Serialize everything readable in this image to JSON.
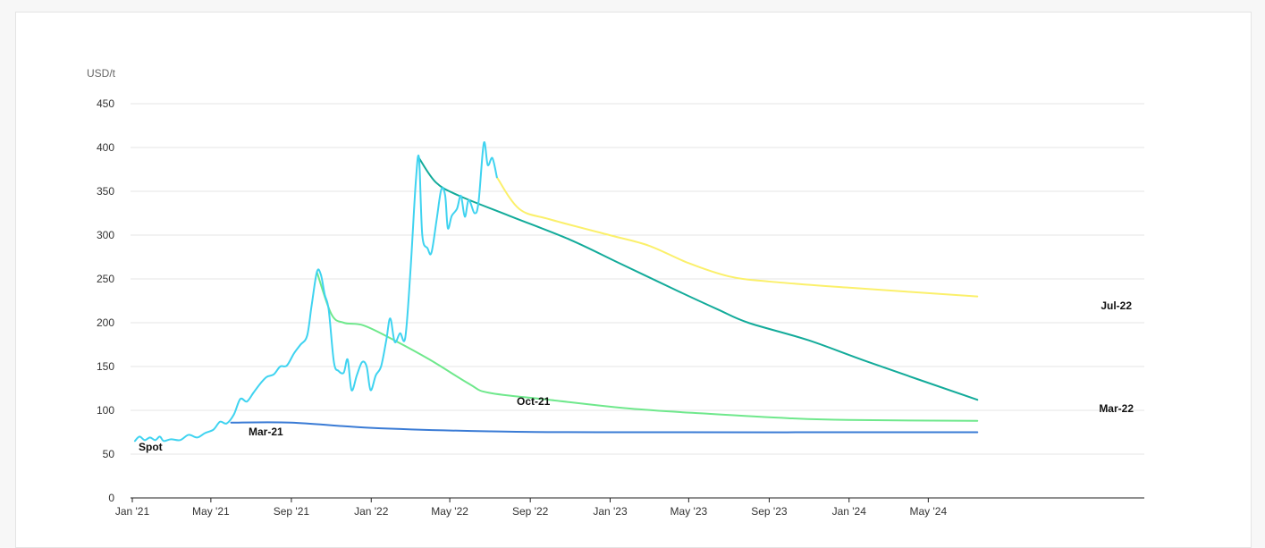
{
  "chart_data": {
    "type": "line",
    "ylabel": "USD/t",
    "ylim": [
      0,
      450
    ],
    "yticks": [
      0,
      50,
      100,
      150,
      200,
      250,
      300,
      350,
      400,
      450
    ],
    "xlim": [
      "2021-01-01",
      "2024-07-15"
    ],
    "xticks": [
      {
        "date": "2021-01-01",
        "label": "Jan '21"
      },
      {
        "date": "2021-05-01",
        "label": "May '21"
      },
      {
        "date": "2021-09-01",
        "label": "Sep '21"
      },
      {
        "date": "2022-01-01",
        "label": "Jan '22"
      },
      {
        "date": "2022-05-01",
        "label": "May '22"
      },
      {
        "date": "2022-09-01",
        "label": "Sep '22"
      },
      {
        "date": "2023-01-01",
        "label": "Jan '23"
      },
      {
        "date": "2023-05-01",
        "label": "May '23"
      },
      {
        "date": "2023-09-01",
        "label": "Sep '23"
      },
      {
        "date": "2024-01-01",
        "label": "Jan '24"
      },
      {
        "date": "2024-05-01",
        "label": "May '24"
      }
    ],
    "grid": true,
    "series": [
      {
        "name": "Spot",
        "color": "#3fd3f0",
        "points": [
          [
            "2021-01-05",
            65
          ],
          [
            "2021-01-12",
            70
          ],
          [
            "2021-01-20",
            66
          ],
          [
            "2021-01-28",
            69
          ],
          [
            "2021-02-05",
            66
          ],
          [
            "2021-02-12",
            70
          ],
          [
            "2021-02-18",
            65
          ],
          [
            "2021-03-01",
            67
          ],
          [
            "2021-03-15",
            66
          ],
          [
            "2021-03-28",
            72
          ],
          [
            "2021-04-10",
            69
          ],
          [
            "2021-04-22",
            74
          ],
          [
            "2021-05-05",
            78
          ],
          [
            "2021-05-15",
            87
          ],
          [
            "2021-05-25",
            85
          ],
          [
            "2021-06-05",
            95
          ],
          [
            "2021-06-15",
            113
          ],
          [
            "2021-06-25",
            110
          ],
          [
            "2021-07-05",
            120
          ],
          [
            "2021-07-15",
            130
          ],
          [
            "2021-07-25",
            138
          ],
          [
            "2021-08-05",
            141
          ],
          [
            "2021-08-15",
            150
          ],
          [
            "2021-08-25",
            151
          ],
          [
            "2021-09-05",
            165
          ],
          [
            "2021-09-15",
            175
          ],
          [
            "2021-09-25",
            185
          ],
          [
            "2021-10-02",
            220
          ],
          [
            "2021-10-10",
            258
          ],
          [
            "2021-10-16",
            255
          ],
          [
            "2021-10-22",
            232
          ],
          [
            "2021-10-28",
            215
          ],
          [
            "2021-11-05",
            155
          ],
          [
            "2021-11-12",
            145
          ],
          [
            "2021-11-20",
            143
          ],
          [
            "2021-11-26",
            158
          ],
          [
            "2021-12-02",
            123
          ],
          [
            "2021-12-10",
            140
          ],
          [
            "2021-12-18",
            155
          ],
          [
            "2021-12-25",
            150
          ],
          [
            "2021-12-31",
            123
          ],
          [
            "2022-01-08",
            140
          ],
          [
            "2022-01-16",
            150
          ],
          [
            "2022-01-24",
            180
          ],
          [
            "2022-01-30",
            205
          ],
          [
            "2022-02-06",
            178
          ],
          [
            "2022-02-14",
            188
          ],
          [
            "2022-02-22",
            183
          ],
          [
            "2022-03-02",
            260
          ],
          [
            "2022-03-10",
            360
          ],
          [
            "2022-03-15",
            388
          ],
          [
            "2022-03-20",
            300
          ],
          [
            "2022-03-28",
            285
          ],
          [
            "2022-04-03",
            280
          ],
          [
            "2022-04-11",
            318
          ],
          [
            "2022-04-18",
            352
          ],
          [
            "2022-04-24",
            345
          ],
          [
            "2022-04-28",
            308
          ],
          [
            "2022-05-04",
            322
          ],
          [
            "2022-05-12",
            330
          ],
          [
            "2022-05-18",
            345
          ],
          [
            "2022-05-24",
            321
          ],
          [
            "2022-05-30",
            340
          ],
          [
            "2022-06-08",
            325
          ],
          [
            "2022-06-14",
            338
          ],
          [
            "2022-06-22",
            405
          ],
          [
            "2022-06-28",
            380
          ],
          [
            "2022-07-05",
            388
          ],
          [
            "2022-07-12",
            366
          ]
        ]
      },
      {
        "name": "Mar-21",
        "color": "#3a7bd5",
        "points": [
          [
            "2021-06-01",
            86
          ],
          [
            "2021-09-01",
            86
          ],
          [
            "2022-01-01",
            80
          ],
          [
            "2022-07-01",
            76
          ],
          [
            "2023-01-01",
            75
          ],
          [
            "2024-07-15",
            75
          ]
        ]
      },
      {
        "name": "Oct-21",
        "color": "#6fe88c",
        "points": [
          [
            "2021-10-10",
            258
          ],
          [
            "2021-11-01",
            210
          ],
          [
            "2021-11-20",
            200
          ],
          [
            "2021-12-20",
            197
          ],
          [
            "2022-01-31",
            182
          ],
          [
            "2022-03-31",
            158
          ],
          [
            "2022-05-31",
            130
          ],
          [
            "2022-06-30",
            120
          ],
          [
            "2022-09-30",
            112
          ],
          [
            "2023-01-31",
            102
          ],
          [
            "2023-06-01",
            96
          ],
          [
            "2023-10-01",
            91
          ],
          [
            "2024-01-01",
            89
          ],
          [
            "2024-07-15",
            88
          ]
        ]
      },
      {
        "name": "Mar-22",
        "color": "#13ab9a",
        "points": [
          [
            "2022-03-15",
            388
          ],
          [
            "2022-04-10",
            360
          ],
          [
            "2022-05-15",
            345
          ],
          [
            "2022-07-31",
            322
          ],
          [
            "2022-10-31",
            295
          ],
          [
            "2023-01-15",
            268
          ],
          [
            "2023-04-15",
            236
          ],
          [
            "2023-06-15",
            215
          ],
          [
            "2023-07-31",
            200
          ],
          [
            "2023-10-31",
            180
          ],
          [
            "2024-01-31",
            155
          ],
          [
            "2024-07-15",
            112
          ]
        ]
      },
      {
        "name": "Jul-22",
        "color": "#fbf06b",
        "points": [
          [
            "2022-07-12",
            366
          ],
          [
            "2022-08-15",
            330
          ],
          [
            "2022-10-01",
            318
          ],
          [
            "2022-12-31",
            300
          ],
          [
            "2023-03-01",
            288
          ],
          [
            "2023-05-01",
            268
          ],
          [
            "2023-07-01",
            253
          ],
          [
            "2023-09-01",
            247
          ],
          [
            "2024-01-01",
            240
          ],
          [
            "2024-07-15",
            230
          ]
        ]
      }
    ]
  }
}
